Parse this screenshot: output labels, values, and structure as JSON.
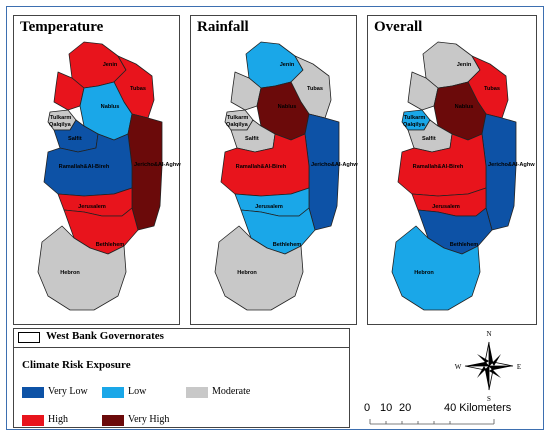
{
  "panels": [
    {
      "title": "Temperature",
      "fills": {
        "jenin": "#e8141c",
        "tubas": "#e8141c",
        "tulkarm": "#e8141c",
        "nablus": "#1aa7e8",
        "qalqilya": "#c8c8c8",
        "salfit": "#0d52a6",
        "jericho": "#6b0a0a",
        "ramallah": "#0d52a6",
        "jerusalem": "#e8141c",
        "bethlehem": "#e8141c",
        "hebron": "#c8c8c8"
      }
    },
    {
      "title": "Rainfall",
      "fills": {
        "jenin": "#1aa7e8",
        "tubas": "#c8c8c8",
        "tulkarm": "#c8c8c8",
        "nablus": "#6b0a0a",
        "qalqilya": "#c8c8c8",
        "salfit": "#c8c8c8",
        "jericho": "#0d52a6",
        "ramallah": "#e8141c",
        "jerusalem": "#1aa7e8",
        "bethlehem": "#1aa7e8",
        "hebron": "#c8c8c8"
      }
    },
    {
      "title": "Overall",
      "fills": {
        "jenin": "#c8c8c8",
        "tubas": "#e8141c",
        "tulkarm": "#c8c8c8",
        "nablus": "#6b0a0a",
        "qalqilya": "#1aa7e8",
        "salfit": "#c8c8c8",
        "jericho": "#0d52a6",
        "ramallah": "#e8141c",
        "jerusalem": "#e8141c",
        "bethlehem": "#0d52a6",
        "hebron": "#1aa7e8"
      }
    }
  ],
  "governorate_labels": {
    "jenin": "Jenin",
    "tubas": "Tubas",
    "tulkarm": "Tulkarm",
    "nablus": "Nablus",
    "qalqilya": "Qalqilya",
    "salfit": "Salfit",
    "jericho": "Jericho&Al-Aghwar",
    "ramallah": "Ramallah&Al-Bireh",
    "jerusalem": "Jerusalem",
    "bethlehem": "Bethlehem",
    "hebron": "Hebron"
  },
  "legend": {
    "boundary_label": "West Bank Governorates",
    "title": "Climate Risk Exposure",
    "classes": [
      {
        "label": "Very Low",
        "color": "#0d52a6"
      },
      {
        "label": "Low",
        "color": "#1aa7e8"
      },
      {
        "label": "Moderate",
        "color": "#c8c8c8"
      },
      {
        "label": "High",
        "color": "#e8141c"
      },
      {
        "label": "Very High",
        "color": "#6b0a0a"
      }
    ]
  },
  "compass": {
    "n": "N",
    "s": "S",
    "e": "E",
    "w": "W"
  },
  "scale_bar": {
    "labels": [
      "0",
      "10",
      "20",
      "40 Kilometers"
    ]
  }
}
